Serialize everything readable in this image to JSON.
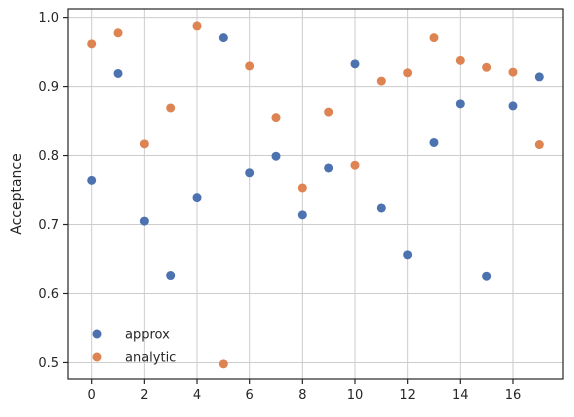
{
  "chart_data": {
    "type": "scatter",
    "title": "",
    "xlabel": "",
    "ylabel": "Acceptance",
    "xlim": [
      -0.9,
      17.9
    ],
    "ylim": [
      0.476,
      1.0125
    ],
    "x_ticks": [
      0,
      2,
      4,
      6,
      8,
      10,
      12,
      14,
      16
    ],
    "y_ticks": [
      0.5,
      0.6,
      0.7,
      0.8,
      0.9,
      1.0
    ],
    "y_tick_labels": [
      "0.5",
      "0.6",
      "0.7",
      "0.8",
      "0.9",
      "1.0"
    ],
    "grid": true,
    "legend_position": "lower-left",
    "series": [
      {
        "name": "approx",
        "color": "#4c72b0",
        "x": [
          0,
          1,
          2,
          3,
          4,
          5,
          6,
          7,
          8,
          9,
          10,
          11,
          12,
          13,
          14,
          15,
          16,
          17
        ],
        "y": [
          0.764,
          0.919,
          0.705,
          0.626,
          0.739,
          0.971,
          0.775,
          0.799,
          0.714,
          0.782,
          0.933,
          0.724,
          0.656,
          0.819,
          0.875,
          0.625,
          0.872,
          0.914
        ]
      },
      {
        "name": "analytic",
        "color": "#dd8452",
        "x": [
          0,
          1,
          2,
          3,
          4,
          5,
          6,
          7,
          8,
          9,
          10,
          11,
          12,
          13,
          14,
          15,
          16,
          17
        ],
        "y": [
          0.962,
          0.978,
          0.817,
          0.869,
          0.988,
          0.498,
          0.93,
          0.855,
          0.753,
          0.863,
          0.786,
          0.908,
          0.92,
          0.971,
          0.938,
          0.928,
          0.921,
          0.816
        ]
      }
    ]
  }
}
